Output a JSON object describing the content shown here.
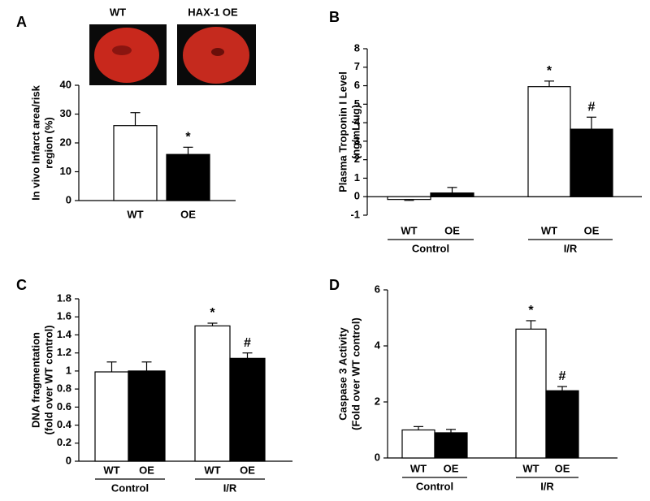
{
  "chart_data": [
    {
      "panel": "A",
      "type": "bar",
      "image_labels": [
        "WT",
        "HAX-1 OE"
      ],
      "ylabel": [
        "In vivo Infarct area/risk",
        "region (%)"
      ],
      "categories": [
        "WT",
        "OE"
      ],
      "values": [
        26,
        16
      ],
      "errors": [
        4.5,
        2.5
      ],
      "colors": [
        "#ffffff",
        "#000000"
      ],
      "marks": [
        null,
        "*"
      ],
      "ylim": [
        0,
        40
      ],
      "yticks": [
        0,
        10,
        20,
        30,
        40
      ]
    },
    {
      "panel": "B",
      "type": "grouped_bar",
      "ylabel": [
        "Plasma Troponin I Level",
        "(ng/mL/ug)"
      ],
      "groups": [
        "Control",
        "I/R"
      ],
      "series": [
        {
          "name": "WT",
          "color": "#ffffff",
          "values": [
            -0.15,
            5.95
          ],
          "errors": [
            0.05,
            0.3
          ],
          "marks": [
            null,
            "*"
          ]
        },
        {
          "name": "OE",
          "color": "#000000",
          "values": [
            0.2,
            3.65
          ],
          "errors": [
            0.3,
            0.65
          ],
          "marks": [
            null,
            "#"
          ]
        }
      ],
      "ylim": [
        -1,
        8
      ],
      "yticks": [
        -1,
        0,
        1,
        2,
        3,
        4,
        5,
        6,
        7,
        8
      ]
    },
    {
      "panel": "C",
      "type": "grouped_bar",
      "ylabel": [
        "DNA fragmentation",
        "(fold over WT control)"
      ],
      "groups": [
        "Control",
        "I/R"
      ],
      "series": [
        {
          "name": "WT",
          "color": "#ffffff",
          "values": [
            0.99,
            1.5
          ],
          "errors": [
            0.11,
            0.03
          ],
          "marks": [
            null,
            "*"
          ]
        },
        {
          "name": "OE",
          "color": "#000000",
          "values": [
            1.0,
            1.14
          ],
          "errors": [
            0.1,
            0.06
          ],
          "marks": [
            null,
            "#"
          ]
        }
      ],
      "ylim": [
        0,
        1.8
      ],
      "yticks": [
        0,
        0.2,
        0.4,
        0.6,
        0.8,
        1,
        1.2,
        1.4,
        1.6,
        1.8
      ]
    },
    {
      "panel": "D",
      "type": "grouped_bar",
      "ylabel": [
        "Caspase 3 Activity",
        "(Fold over WT control)"
      ],
      "groups": [
        "Control",
        "I/R"
      ],
      "series": [
        {
          "name": "WT",
          "color": "#ffffff",
          "values": [
            1.0,
            4.6
          ],
          "errors": [
            0.12,
            0.3
          ],
          "marks": [
            null,
            "*"
          ]
        },
        {
          "name": "OE",
          "color": "#000000",
          "values": [
            0.9,
            2.4
          ],
          "errors": [
            0.12,
            0.15
          ],
          "marks": [
            null,
            "#"
          ]
        }
      ],
      "ylim": [
        0,
        6
      ],
      "yticks": [
        0,
        2,
        4,
        6
      ]
    }
  ]
}
